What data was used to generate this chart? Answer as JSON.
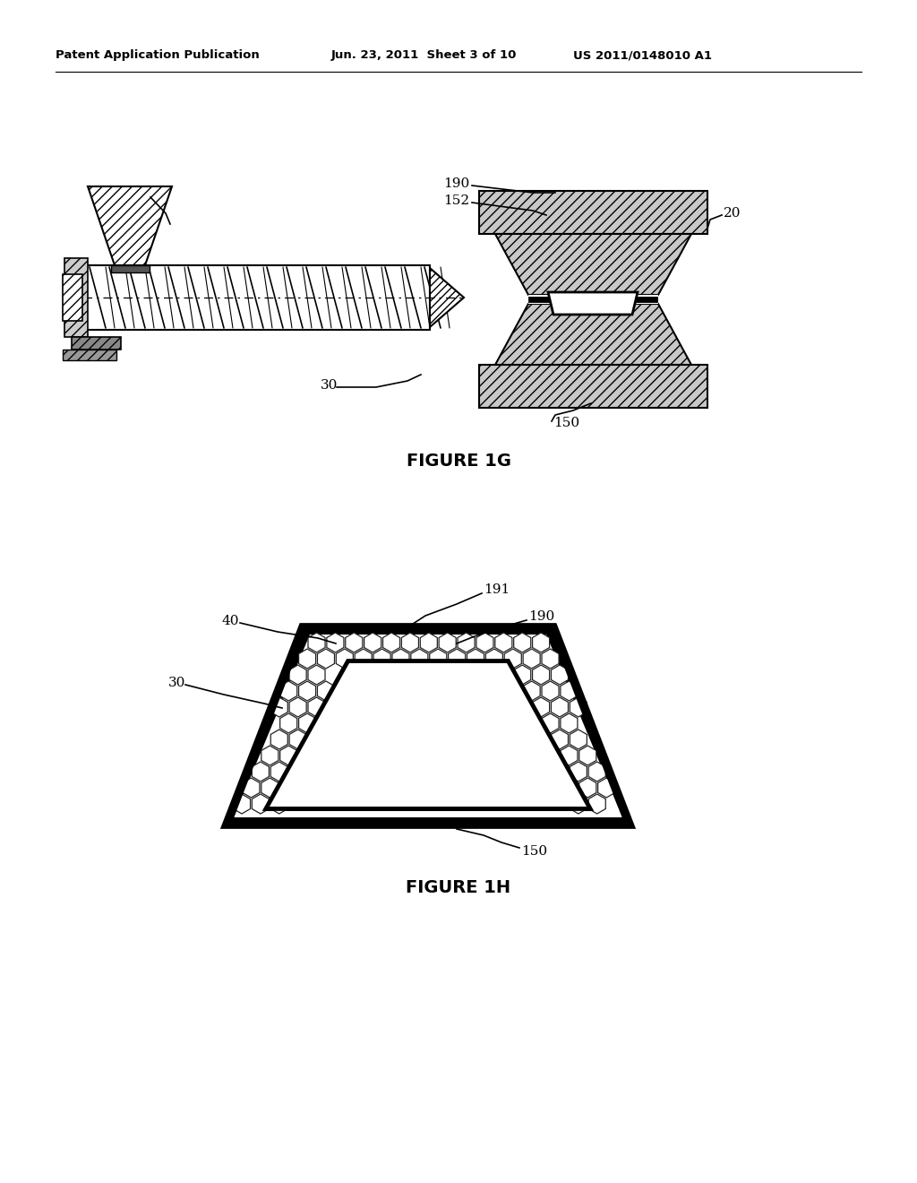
{
  "background_color": "#ffffff",
  "header_text_left": "Patent Application Publication",
  "header_text_mid": "Jun. 23, 2011  Sheet 3 of 10",
  "header_text_right": "US 2011/0148010 A1",
  "figure_1g_label": "FIGURE 1G",
  "figure_1h_label": "FIGURE 1H"
}
